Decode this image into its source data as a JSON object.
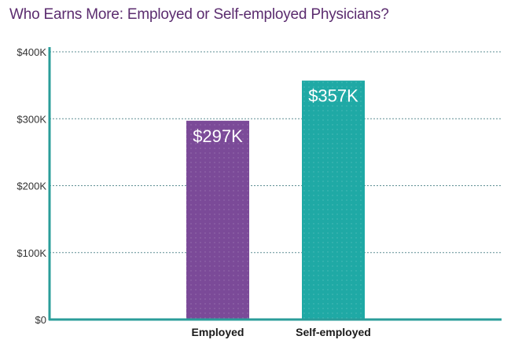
{
  "title": "Who Earns More: Employed or Self-employed Physicians?",
  "colors": {
    "title": "#5b2c6f",
    "axis": "#2a9d9a",
    "grid": "#5e8e93",
    "employed": "#7b4a98",
    "self_employed": "#1fa9a5"
  },
  "chart_data": {
    "type": "bar",
    "title": "Who Earns More: Employed or Self-employed Physicians?",
    "xlabel": "",
    "ylabel": "",
    "categories": [
      "Employed",
      "Self-employed"
    ],
    "values": [
      297,
      357
    ],
    "value_labels": [
      "$297K",
      "$357K"
    ],
    "value_unit": "thousand USD",
    "ylim": [
      0,
      400
    ],
    "yticks": [
      0,
      100,
      200,
      300,
      400
    ],
    "ytick_labels": [
      "$0",
      "$100K",
      "$200K",
      "$300K",
      "$400K"
    ],
    "grid": true,
    "grid_style": "dashed",
    "legend": "none"
  }
}
